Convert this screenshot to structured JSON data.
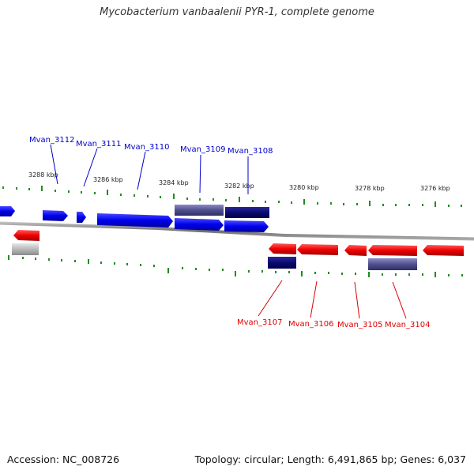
{
  "title": "Mycobacterium vanbaalenii PYR-1, complete genome",
  "accession": "Accession: NC_008726",
  "stats": "Topology: circular; Length: 6,491,865 bp; Genes: 6,037",
  "colors": {
    "forward_strand": "#0000ee",
    "reverse_strand": "#ee0000",
    "forward_label": "#0000cc",
    "reverse_label": "#dd0000",
    "tick": "#228b22",
    "backbone": "#888888"
  },
  "scale_labels": [
    "3288 kbp",
    "3286 kbp",
    "3284 kbp",
    "3282 kbp",
    "3280 kbp",
    "3278 kbp",
    "3276 kbp"
  ],
  "forward_genes": [
    "Mvan_3112",
    "Mvan_3111",
    "Mvan_3110",
    "Mvan_3109",
    "Mvan_3108"
  ],
  "reverse_genes": [
    "Mvan_3107",
    "Mvan_3106",
    "Mvan_3105",
    "Mvan_3104"
  ]
}
